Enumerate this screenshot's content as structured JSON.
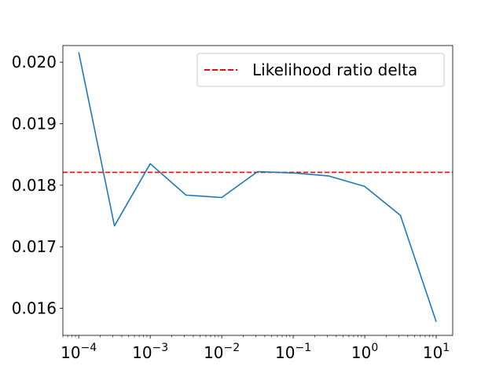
{
  "chart_data": {
    "type": "line",
    "title": "",
    "xlabel": "",
    "ylabel": "",
    "x_scale": "log",
    "xlim": [
      6e-05,
      17
    ],
    "ylim": [
      0.01556,
      0.02027
    ],
    "grid": false,
    "legend_placement": "upper-right",
    "x_ticks": [
      {
        "value": 0.0001,
        "base": "10",
        "exp": "−4"
      },
      {
        "value": 0.001,
        "base": "10",
        "exp": "−3"
      },
      {
        "value": 0.01,
        "base": "10",
        "exp": "−2"
      },
      {
        "value": 0.1,
        "base": "10",
        "exp": "−1"
      },
      {
        "value": 1,
        "base": "10",
        "exp": "0"
      },
      {
        "value": 10,
        "base": "10",
        "exp": "1"
      }
    ],
    "y_ticks": [
      {
        "value": 0.016,
        "label": "0.016"
      },
      {
        "value": 0.017,
        "label": "0.017"
      },
      {
        "value": 0.018,
        "label": "0.018"
      },
      {
        "value": 0.019,
        "label": "0.019"
      },
      {
        "value": 0.02,
        "label": "0.020"
      }
    ],
    "series": [
      {
        "color": "#1f77b4",
        "style": "solid",
        "x": [
          0.0001,
          0.000316,
          0.001,
          0.00316,
          0.01,
          0.0316,
          0.1,
          0.316,
          1,
          3.16,
          10
        ],
        "y": [
          0.02016,
          0.01734,
          0.01835,
          0.01784,
          0.0178,
          0.01822,
          0.0182,
          0.01815,
          0.01798,
          0.01751,
          0.01578
        ]
      }
    ],
    "reference_lines": [
      {
        "name": "Likelihood ratio delta",
        "orientation": "horizontal",
        "y": 0.01821,
        "color": "#ff0000",
        "style": "dashed"
      }
    ]
  }
}
